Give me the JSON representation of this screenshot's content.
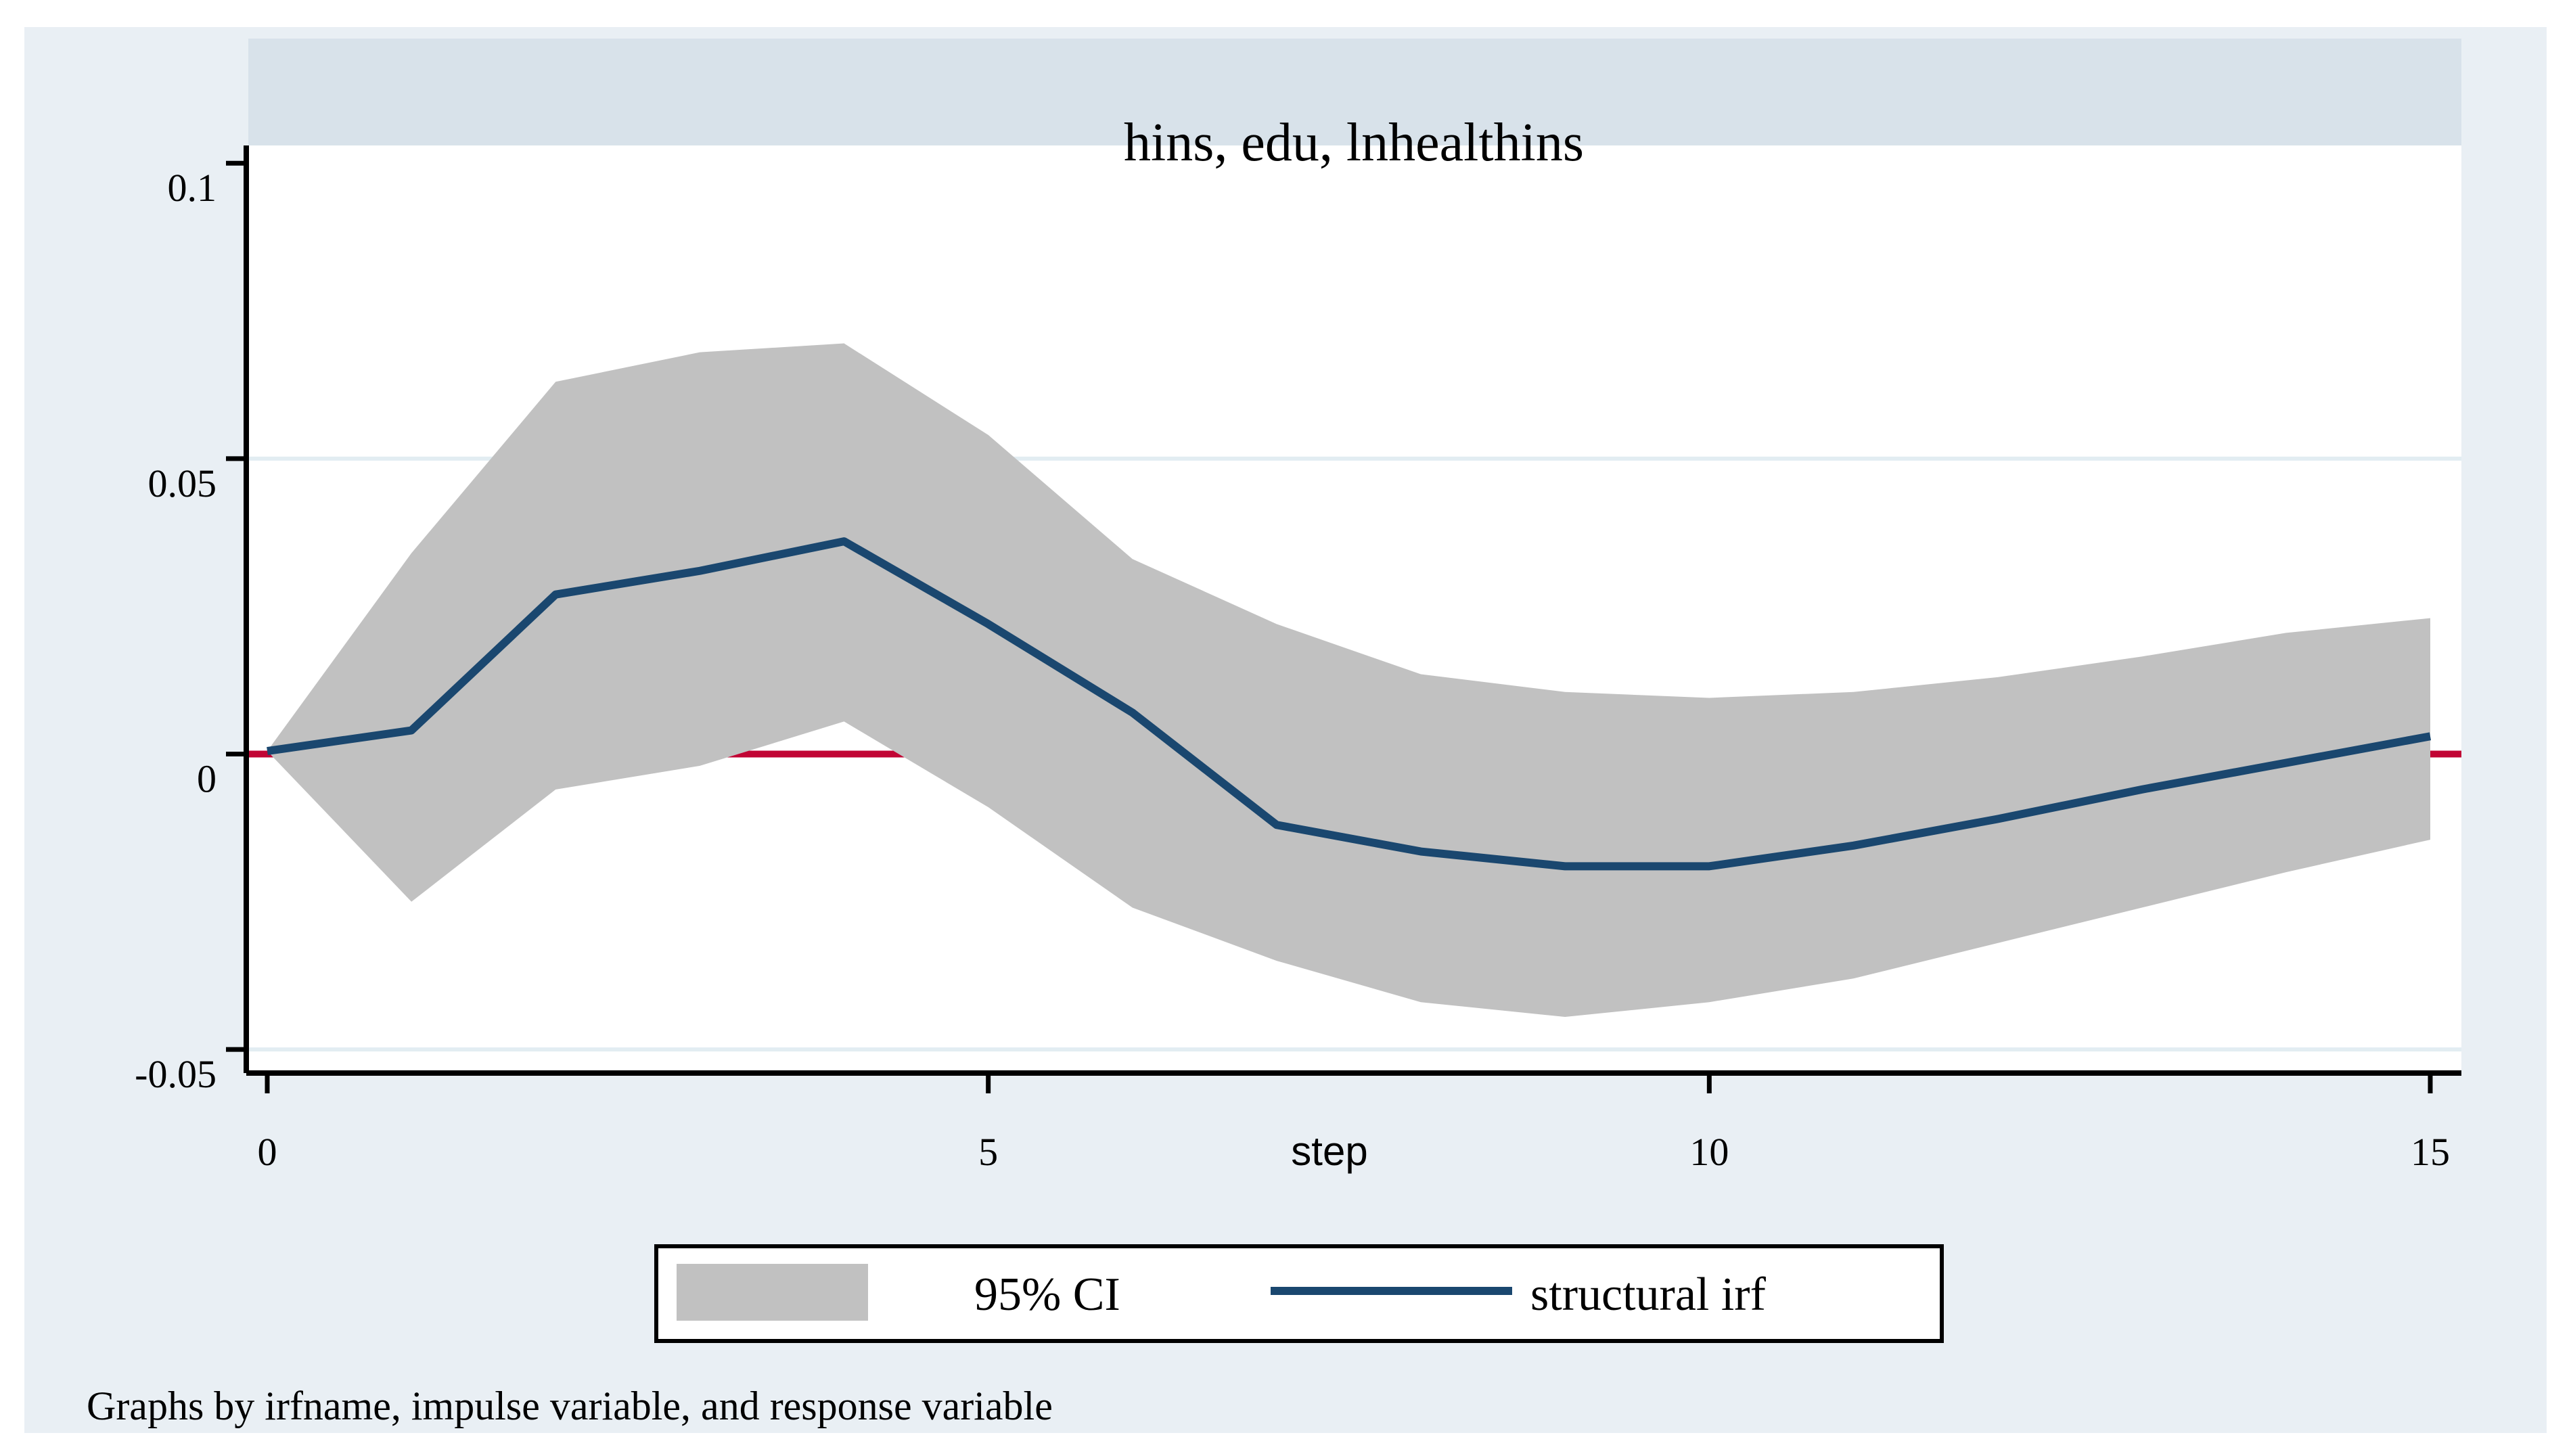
{
  "title": "hins, edu, lnhealthins",
  "x_axis": {
    "label": "step"
  },
  "footer": {
    "text": "Graphs by irfname, impulse variable, and response variable"
  },
  "legend": {
    "items": [
      {
        "swatch": "gray-band-swatch",
        "label": "95% CI"
      },
      {
        "swatch": "navy-line-swatch",
        "label": "structural irf"
      }
    ]
  },
  "colors": {
    "figure_background": "#e9eff4",
    "title_strip": "#d8e2ea",
    "plot_background": "#ffffff",
    "ci_band": "#c1c1c1",
    "irf_line": "#1a476f",
    "zero_reference_line": "#c10534",
    "gridline": "#e2edf2",
    "axis": "#000000"
  },
  "chart_data": {
    "type": "area",
    "title": "hins, edu, lnhealthins",
    "xlabel": "step",
    "ylabel": "",
    "x": [
      0,
      1,
      2,
      3,
      4,
      5,
      6,
      7,
      8,
      9,
      10,
      11,
      12,
      13,
      14,
      15
    ],
    "series": [
      {
        "name": "95% CI upper",
        "type": "band-upper",
        "values": [
          0.0005,
          0.034,
          0.063,
          0.068,
          0.0695,
          0.054,
          0.033,
          0.022,
          0.0135,
          0.0105,
          0.0095,
          0.0105,
          0.013,
          0.0165,
          0.0205,
          0.023
        ]
      },
      {
        "name": "structural irf",
        "type": "line",
        "values": [
          0.0005,
          0.004,
          0.027,
          0.031,
          0.036,
          0.022,
          0.007,
          -0.012,
          -0.0165,
          -0.019,
          -0.019,
          -0.0155,
          -0.011,
          -0.006,
          -0.0015,
          0.003
        ]
      },
      {
        "name": "95% CI lower",
        "type": "band-lower",
        "values": [
          0.0005,
          -0.025,
          -0.006,
          -0.002,
          0.0055,
          -0.009,
          -0.026,
          -0.035,
          -0.042,
          -0.0445,
          -0.042,
          -0.038,
          -0.032,
          -0.026,
          -0.02,
          -0.0145
        ]
      }
    ],
    "reference_line_y": 0,
    "x_ticks": [
      0,
      5,
      10,
      15
    ],
    "x_tick_labels": [
      "0",
      "5",
      "10",
      "15"
    ],
    "y_ticks": [
      0.1,
      0.05,
      0,
      -0.05
    ],
    "y_tick_labels": [
      "0.1",
      "0.05",
      "0",
      "-0.05"
    ],
    "grid_y_values": [
      0.05,
      -0.05
    ],
    "xlim": [
      0,
      15
    ],
    "ylim": [
      -0.054,
      0.103
    ],
    "grid": "horizontal",
    "legend_position": "bottom-center"
  }
}
